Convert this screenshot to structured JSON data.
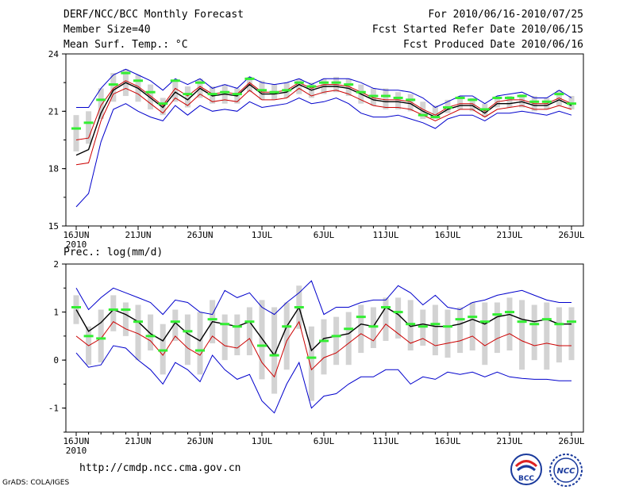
{
  "header": {
    "title": "DERF/NCC/BCC Monthly Forecast",
    "member_size": "Member Size=40",
    "variable": "Mean Surf. Temp.: °C",
    "period": "For 2010/06/16-2010/07/25",
    "started": "Fcst Started Refer Date 2010/06/15",
    "produced": "Fcst Produced Date 2010/06/16"
  },
  "colors": {
    "spread": "#0000cc",
    "ensemble_mean": "#000000",
    "bias_corrected": "#cc0000",
    "interquartile_box": "#d3d3d3",
    "median": "#33ee33"
  },
  "chart_data": [
    {
      "type": "line",
      "title": "Mean Surf. Temp.: °C",
      "ylabel": "°C",
      "ylim": [
        15,
        24
      ],
      "yticks": [
        "15",
        "18",
        "21",
        "24"
      ],
      "xticks": [
        "16JUN",
        "21JUN",
        "26JUN",
        "1JUL",
        "6JUL",
        "11JUL",
        "16JUL",
        "21JUL",
        "26JUL"
      ],
      "year_label": "2010",
      "series": [
        {
          "name": "max",
          "color": "#0000cc",
          "values": [
            21.2,
            21.2,
            22.2,
            22.9,
            23.2,
            22.9,
            22.6,
            22.1,
            22.7,
            22.4,
            22.7,
            22.2,
            22.4,
            22.2,
            22.8,
            22.5,
            22.4,
            22.5,
            22.7,
            22.4,
            22.7,
            22.7,
            22.7,
            22.5,
            22.2,
            22.1,
            22.1,
            22.0,
            21.7,
            21.2,
            21.5,
            21.8,
            21.8,
            21.4,
            21.8,
            21.9,
            22.0,
            21.7,
            21.7,
            22.1,
            21.7
          ]
        },
        {
          "name": "upper",
          "color": "#cc0000",
          "values": [
            19.5,
            19.6,
            21.3,
            22.2,
            22.6,
            22.3,
            21.8,
            21.3,
            22.2,
            21.8,
            22.3,
            21.9,
            22.0,
            21.9,
            22.5,
            22.0,
            22.0,
            22.1,
            22.5,
            22.2,
            22.4,
            22.4,
            22.3,
            22.0,
            21.7,
            21.6,
            21.6,
            21.5,
            21.1,
            20.8,
            21.2,
            21.4,
            21.4,
            21.0,
            21.5,
            21.6,
            21.6,
            21.4,
            21.4,
            21.7,
            21.4
          ]
        },
        {
          "name": "ensemble_mean",
          "color": "#000000",
          "values": [
            18.7,
            19.0,
            20.9,
            22.1,
            22.5,
            22.2,
            21.7,
            21.2,
            22.0,
            21.6,
            22.2,
            21.8,
            21.9,
            21.8,
            22.4,
            21.9,
            21.9,
            22.0,
            22.4,
            22.1,
            22.3,
            22.3,
            22.2,
            21.9,
            21.6,
            21.5,
            21.5,
            21.4,
            21.0,
            20.7,
            21.1,
            21.3,
            21.3,
            20.9,
            21.4,
            21.4,
            21.5,
            21.3,
            21.3,
            21.6,
            21.3
          ]
        },
        {
          "name": "lower",
          "color": "#cc0000",
          "values": [
            18.2,
            18.3,
            20.5,
            21.9,
            22.2,
            21.9,
            21.4,
            20.9,
            21.7,
            21.3,
            21.9,
            21.5,
            21.6,
            21.5,
            22.1,
            21.6,
            21.6,
            21.7,
            22.2,
            21.8,
            22.0,
            22.1,
            21.9,
            21.6,
            21.3,
            21.2,
            21.2,
            21.1,
            20.8,
            20.5,
            20.8,
            21.1,
            21.1,
            20.7,
            21.1,
            21.2,
            21.3,
            21.1,
            21.1,
            21.3,
            21.1
          ]
        },
        {
          "name": "min",
          "color": "#0000cc",
          "values": [
            16.0,
            16.7,
            19.4,
            21.1,
            21.4,
            21.0,
            20.7,
            20.5,
            21.3,
            20.8,
            21.3,
            21.0,
            21.1,
            21.0,
            21.5,
            21.2,
            21.3,
            21.4,
            21.7,
            21.4,
            21.5,
            21.7,
            21.4,
            20.9,
            20.7,
            20.7,
            20.8,
            20.6,
            20.4,
            20.1,
            20.6,
            20.8,
            20.8,
            20.5,
            20.9,
            20.9,
            21.0,
            20.9,
            20.8,
            21.0,
            20.8
          ]
        }
      ],
      "boxes": {
        "low": [
          18.9,
          19.3,
          20.6,
          21.5,
          21.8,
          21.5,
          21.1,
          20.8,
          21.5,
          21.2,
          21.7,
          21.4,
          21.4,
          21.4,
          22.0,
          21.6,
          21.6,
          21.7,
          21.9,
          21.7,
          21.9,
          22.0,
          21.8,
          21.4,
          21.3,
          21.1,
          21.1,
          21.0,
          20.6,
          20.6,
          20.9,
          21.1,
          21.0,
          20.7,
          21.2,
          21.2,
          21.2,
          21.0,
          21.1,
          21.3,
          21.1
        ],
        "high": [
          20.8,
          21.0,
          22.2,
          23.0,
          23.2,
          22.9,
          22.4,
          21.7,
          22.6,
          22.3,
          22.7,
          22.3,
          22.4,
          22.2,
          22.8,
          22.6,
          22.4,
          22.5,
          22.7,
          22.5,
          22.7,
          22.8,
          22.7,
          22.4,
          22.2,
          22.2,
          22.0,
          21.9,
          21.5,
          21.3,
          21.6,
          21.8,
          21.7,
          21.4,
          21.8,
          21.8,
          21.9,
          21.8,
          21.7,
          22.1,
          21.8
        ],
        "median": [
          20.1,
          20.4,
          21.6,
          22.4,
          23.0,
          22.6,
          22.0,
          21.4,
          22.6,
          21.9,
          22.5,
          21.9,
          22.0,
          21.9,
          22.7,
          22.1,
          22.0,
          22.1,
          22.5,
          22.3,
          22.5,
          22.5,
          22.4,
          22.0,
          21.8,
          21.8,
          21.7,
          21.6,
          20.8,
          20.7,
          21.2,
          21.7,
          21.6,
          21.1,
          21.7,
          21.7,
          21.8,
          21.5,
          21.5,
          21.9,
          21.4
        ]
      }
    },
    {
      "type": "line",
      "title": "Prec.: log(mm/d)",
      "ylabel": "log(mm/d)",
      "ylim": [
        -1.5,
        2
      ],
      "yticks": [
        "-1",
        "0",
        "1",
        "2"
      ],
      "xticks": [
        "16JUN",
        "21JUN",
        "26JUN",
        "1JUL",
        "6JUL",
        "11JUL",
        "16JUL",
        "21JUL",
        "26JUL"
      ],
      "year_label": "2010",
      "series": [
        {
          "name": "max",
          "color": "#0000cc",
          "values": [
            1.5,
            1.05,
            1.3,
            1.5,
            1.4,
            1.3,
            1.2,
            0.95,
            1.25,
            1.2,
            1.0,
            0.95,
            1.45,
            1.3,
            1.4,
            1.1,
            0.95,
            1.2,
            1.4,
            1.65,
            0.95,
            1.1,
            1.1,
            1.2,
            1.25,
            1.25,
            1.55,
            1.4,
            1.15,
            1.35,
            1.1,
            1.05,
            1.2,
            1.25,
            1.35,
            1.4,
            1.45,
            1.35,
            1.25,
            1.2,
            1.2
          ]
        },
        {
          "name": "ensemble_mean",
          "color": "#000000",
          "values": [
            1.05,
            0.6,
            0.78,
            1.05,
            0.95,
            0.8,
            0.55,
            0.4,
            0.78,
            0.55,
            0.4,
            0.8,
            0.75,
            0.7,
            0.8,
            0.45,
            0.1,
            0.7,
            1.1,
            0.2,
            0.45,
            0.5,
            0.55,
            0.75,
            0.7,
            1.1,
            0.95,
            0.7,
            0.75,
            0.7,
            0.7,
            0.75,
            0.85,
            0.75,
            0.9,
            0.95,
            0.85,
            0.8,
            0.85,
            0.75,
            0.75
          ]
        },
        {
          "name": "bias_corrected",
          "color": "#cc0000",
          "values": [
            0.5,
            0.3,
            0.45,
            0.8,
            0.65,
            0.55,
            0.4,
            0.1,
            0.5,
            0.25,
            0.1,
            0.5,
            0.3,
            0.25,
            0.45,
            -0.05,
            -0.35,
            0.4,
            0.8,
            -0.2,
            0.05,
            0.15,
            0.35,
            0.55,
            0.4,
            0.75,
            0.55,
            0.35,
            0.45,
            0.3,
            0.35,
            0.4,
            0.5,
            0.3,
            0.45,
            0.55,
            0.4,
            0.3,
            0.35,
            0.3,
            0.3
          ]
        },
        {
          "name": "min",
          "color": "#0000cc",
          "values": [
            0.15,
            -0.15,
            -0.1,
            0.3,
            0.25,
            0.0,
            -0.2,
            -0.5,
            -0.05,
            -0.2,
            -0.45,
            0.1,
            -0.2,
            -0.4,
            -0.3,
            -0.85,
            -1.1,
            -0.5,
            -0.05,
            -1.0,
            -0.75,
            -0.7,
            -0.5,
            -0.35,
            -0.35,
            -0.2,
            -0.2,
            -0.5,
            -0.35,
            -0.4,
            -0.25,
            -0.3,
            -0.25,
            -0.35,
            -0.25,
            -0.35,
            -0.38,
            -0.4,
            -0.4,
            -0.43,
            -0.43
          ]
        }
      ],
      "boxes": {
        "low": [
          0.75,
          -0.1,
          -0.05,
          0.6,
          0.5,
          0.0,
          0.2,
          -0.3,
          0.4,
          -0.1,
          -0.3,
          0.35,
          0.0,
          0.1,
          0.1,
          -0.4,
          -0.7,
          -0.2,
          0.65,
          -0.85,
          -0.3,
          -0.1,
          -0.1,
          0.15,
          0.25,
          0.4,
          0.45,
          0.2,
          0.3,
          0.1,
          0.05,
          0.15,
          0.2,
          -0.1,
          0.15,
          0.2,
          -0.2,
          0.0,
          -0.2,
          -0.05,
          0.0
        ],
        "high": [
          1.35,
          0.7,
          1.05,
          1.35,
          1.2,
          1.15,
          0.95,
          0.75,
          1.05,
          0.95,
          1.0,
          1.25,
          0.95,
          0.95,
          1.1,
          1.25,
          1.1,
          1.2,
          1.55,
          0.7,
          0.85,
          0.9,
          1.0,
          1.15,
          1.1,
          1.3,
          1.3,
          1.25,
          1.05,
          1.15,
          1.05,
          1.1,
          1.2,
          1.2,
          1.2,
          1.3,
          1.25,
          1.15,
          1.2,
          1.1,
          1.1
        ],
        "median": [
          1.1,
          0.5,
          0.45,
          1.05,
          1.05,
          0.8,
          0.5,
          0.2,
          0.8,
          0.6,
          0.2,
          0.85,
          0.75,
          0.7,
          0.8,
          0.3,
          0.1,
          0.7,
          1.1,
          0.05,
          0.4,
          0.5,
          0.65,
          0.9,
          0.7,
          1.1,
          1.0,
          0.75,
          0.7,
          0.75,
          0.7,
          0.85,
          0.9,
          0.8,
          0.95,
          1.0,
          0.8,
          0.75,
          0.85,
          0.75,
          0.8
        ]
      }
    }
  ],
  "footer": {
    "url": "http://cmdp.ncc.cma.gov.cn",
    "credit": "GrADS: COLA/IGES",
    "logo_left": "BCC",
    "logo_right": "NCC"
  }
}
